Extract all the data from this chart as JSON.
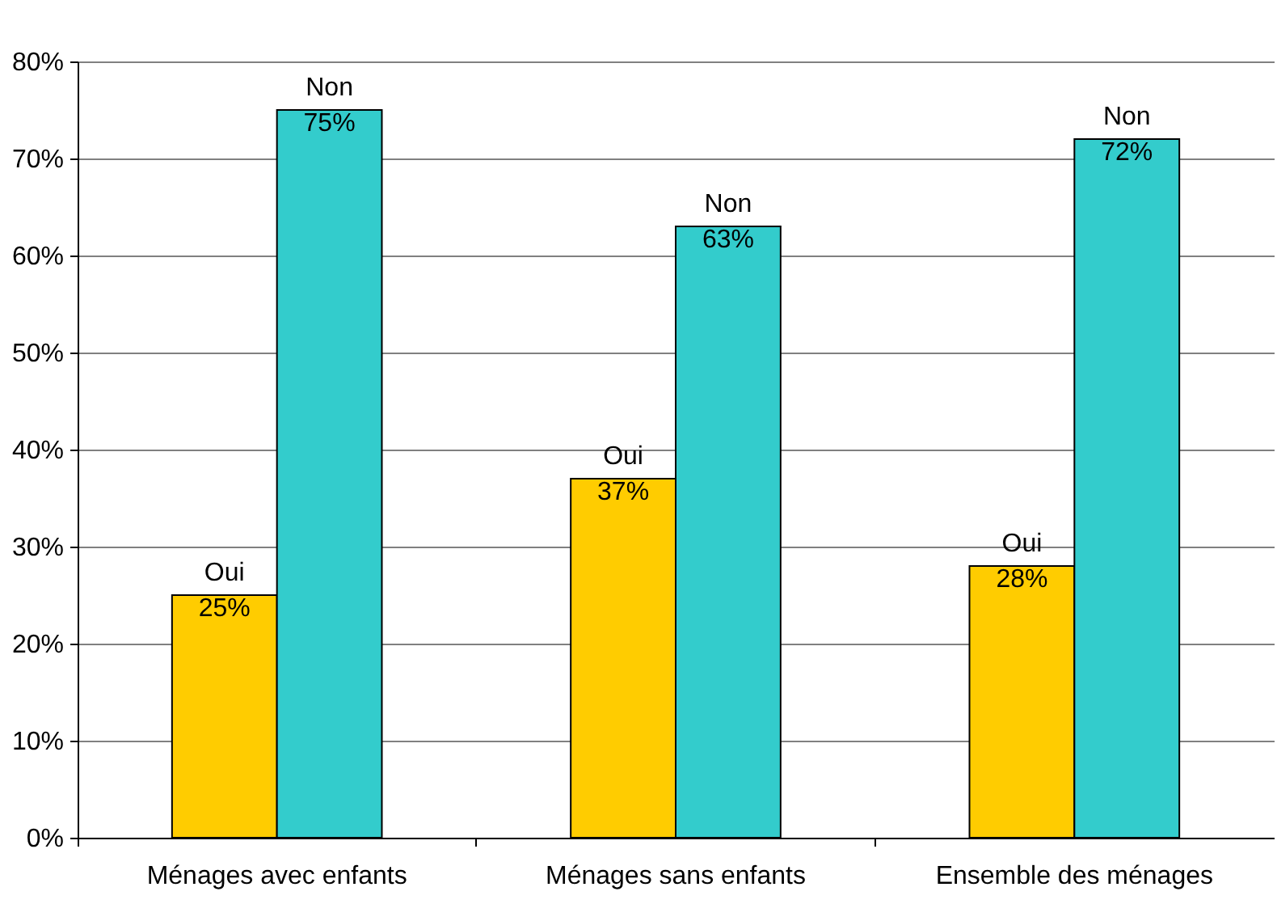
{
  "chart_data": {
    "type": "bar",
    "categories": [
      "Ménages avec enfants",
      "Ménages sans enfants",
      "Ensemble des ménages"
    ],
    "series": [
      {
        "name": "Oui",
        "color": "#ffcc00",
        "values": [
          25,
          37,
          28
        ],
        "value_labels": [
          "25%",
          "37%",
          "28%"
        ]
      },
      {
        "name": "Non",
        "color": "#33cccc",
        "values": [
          75,
          63,
          72
        ],
        "value_labels": [
          "75%",
          "63%",
          "72%"
        ]
      }
    ],
    "ylim": [
      0,
      80
    ],
    "yticks": [
      {
        "value": 0,
        "label": "0%"
      },
      {
        "value": 10,
        "label": "10%"
      },
      {
        "value": 20,
        "label": "20%"
      },
      {
        "value": 30,
        "label": "30%"
      },
      {
        "value": 40,
        "label": "40%"
      },
      {
        "value": 50,
        "label": "50%"
      },
      {
        "value": 60,
        "label": "60%"
      },
      {
        "value": 70,
        "label": "70%"
      },
      {
        "value": 80,
        "label": "80%"
      }
    ],
    "grid": "y",
    "legend": false
  }
}
